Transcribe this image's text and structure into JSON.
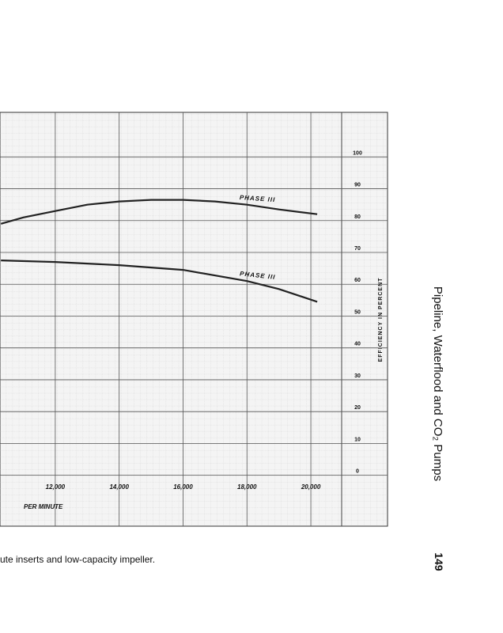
{
  "page_header": "Pipeline, Waterflood and CO₂ Pumps",
  "page_number": "149",
  "caption": "ute inserts and low-capacity impeller.",
  "chart_data": {
    "type": "line",
    "x_label": "PER MINUTE",
    "y_label": "EFFICIENCY IN PERCENT",
    "xlim": [
      10270,
      22400
    ],
    "ylim": [
      -16,
      114
    ],
    "xticks": [
      {
        "value": 12000,
        "label": "12,000"
      },
      {
        "value": 14000,
        "label": "14,000"
      },
      {
        "value": 16000,
        "label": "16,000"
      },
      {
        "value": 18000,
        "label": "18,000"
      },
      {
        "value": 20000,
        "label": "20,000"
      }
    ],
    "yticks": [
      0,
      10,
      20,
      30,
      40,
      50,
      60,
      70,
      80,
      90,
      100
    ],
    "grid": true,
    "series": [
      {
        "name": "PHASE III",
        "color": "#222222",
        "x": [
          10300,
          11000,
          12000,
          13000,
          14000,
          15000,
          16000,
          17000,
          18000,
          19000,
          20200
        ],
        "values": [
          79,
          81,
          83,
          85,
          86,
          86.5,
          86.5,
          86,
          85,
          83.5,
          82
        ]
      },
      {
        "name": "PHASE III",
        "color": "#222222",
        "x": [
          10300,
          12000,
          14000,
          16000,
          18000,
          19000,
          20200
        ],
        "values": [
          67.5,
          67,
          66,
          64.5,
          61,
          58.5,
          54.5
        ]
      }
    ]
  }
}
